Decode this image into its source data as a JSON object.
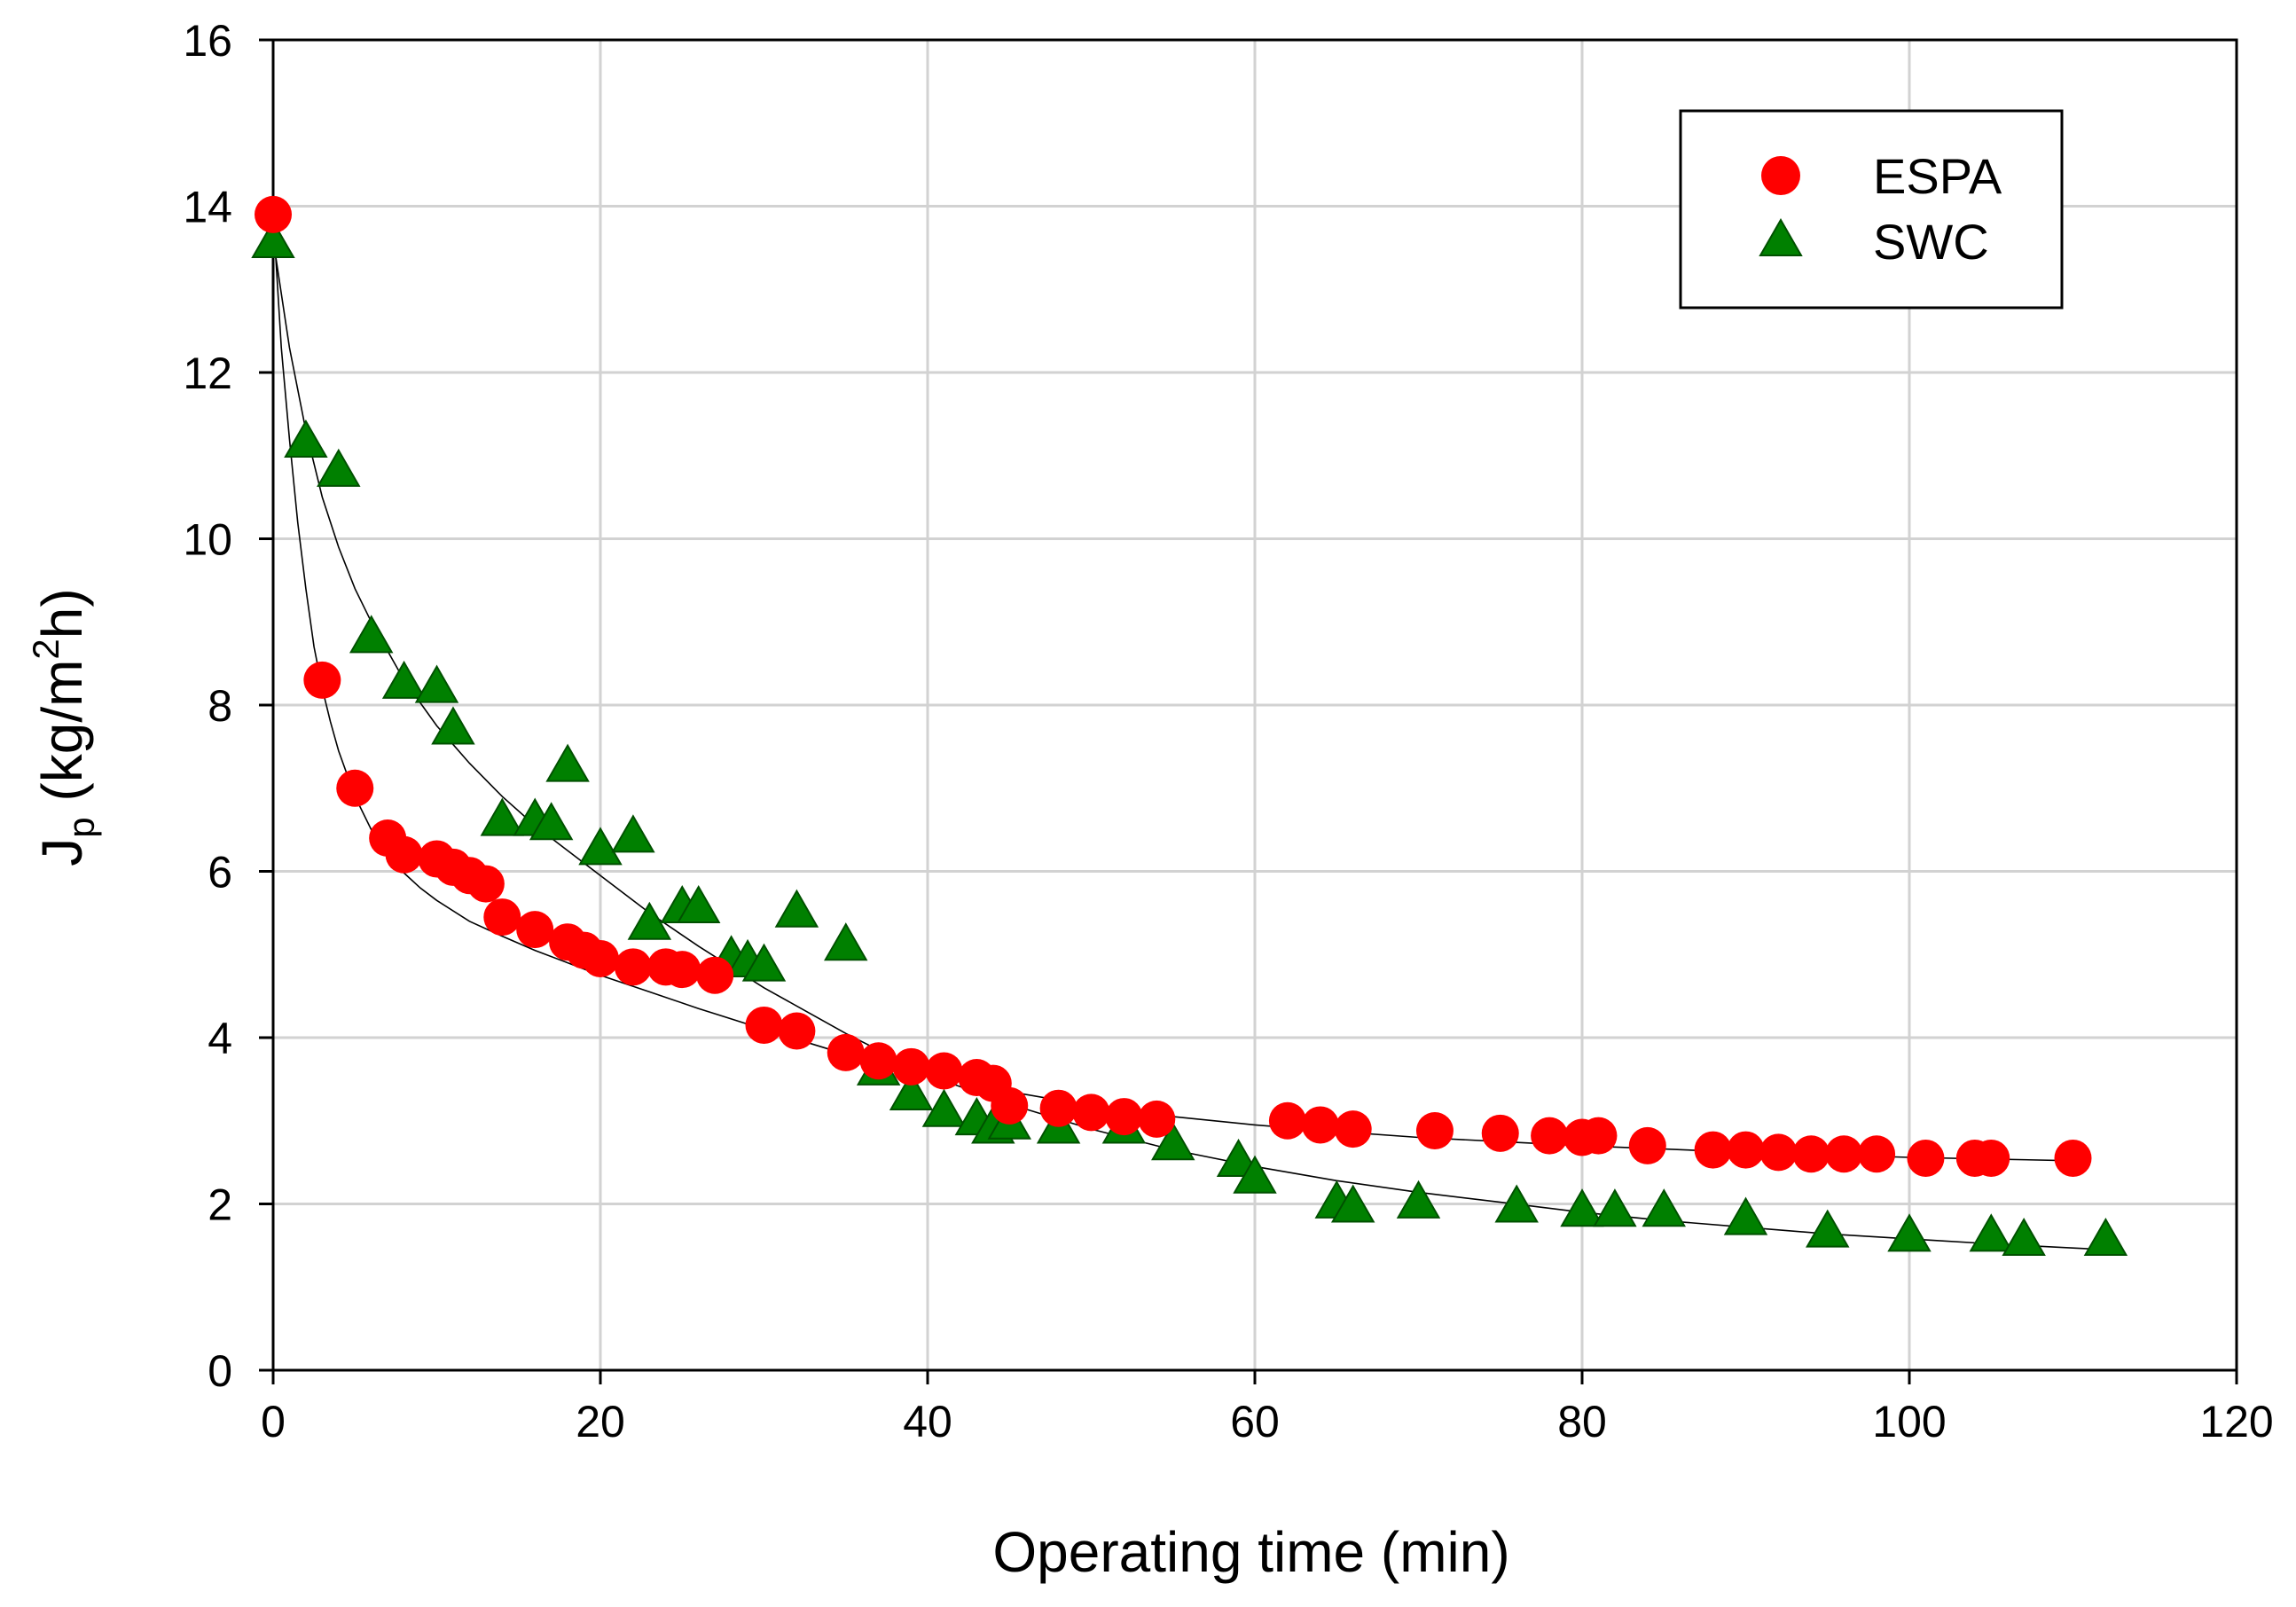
{
  "chart_data": {
    "type": "scatter",
    "title": "",
    "xlabel": "Operating time (min)",
    "ylabel": {
      "main": "J",
      "subscript": "p",
      "unit_open": " (kg/m",
      "superscript": "2",
      "unit_close": "h)"
    },
    "xlim": [
      0,
      120
    ],
    "ylim": [
      0,
      16
    ],
    "xticks": [
      0,
      20,
      40,
      60,
      80,
      100,
      120
    ],
    "yticks": [
      0,
      2,
      4,
      6,
      8,
      10,
      12,
      14,
      16
    ],
    "grid": true,
    "legend_position": "top-right",
    "series": [
      {
        "name": "ESPA",
        "marker": "circle",
        "color": "#ff0000",
        "x": [
          0,
          3,
          5,
          7,
          8,
          10,
          11,
          12,
          13,
          14,
          16,
          18,
          19,
          20,
          22,
          24,
          25,
          27,
          30,
          32,
          35,
          37,
          39,
          41,
          43,
          44,
          45,
          48,
          50,
          52,
          54,
          62,
          64,
          66,
          71,
          75,
          78,
          80,
          81,
          84,
          88,
          90,
          92,
          94,
          96,
          98,
          101,
          104,
          105,
          110
        ],
        "y": [
          13.9,
          8.3,
          7.0,
          6.4,
          6.2,
          6.15,
          6.05,
          5.95,
          5.85,
          5.45,
          5.3,
          5.15,
          5.05,
          4.95,
          4.85,
          4.85,
          4.82,
          4.75,
          4.15,
          4.08,
          3.82,
          3.72,
          3.65,
          3.6,
          3.52,
          3.45,
          3.18,
          3.15,
          3.1,
          3.05,
          3.02,
          3.0,
          2.95,
          2.9,
          2.88,
          2.85,
          2.82,
          2.8,
          2.82,
          2.7,
          2.65,
          2.65,
          2.62,
          2.6,
          2.6,
          2.6,
          2.55,
          2.55,
          2.55,
          2.55
        ]
      },
      {
        "name": "SWC",
        "marker": "triangle",
        "color": "#008000",
        "x": [
          0,
          2,
          4,
          6,
          8,
          10,
          11,
          14,
          16,
          17,
          18,
          20,
          22,
          23,
          25,
          26,
          28,
          29,
          30,
          32,
          35,
          37,
          39,
          41,
          43,
          44,
          45,
          48,
          52,
          55,
          59,
          60,
          65,
          66,
          70,
          76,
          80,
          82,
          85,
          90,
          95,
          100,
          105,
          107,
          112
        ],
        "y": [
          13.6,
          11.2,
          10.85,
          8.85,
          8.3,
          8.25,
          7.75,
          6.65,
          6.65,
          6.6,
          7.3,
          6.3,
          6.45,
          5.4,
          5.6,
          5.6,
          5.0,
          4.95,
          4.9,
          5.55,
          5.15,
          3.65,
          3.35,
          3.15,
          3.05,
          2.95,
          3.0,
          2.95,
          2.95,
          2.75,
          2.55,
          2.35,
          2.05,
          2.0,
          2.05,
          2.0,
          1.95,
          1.95,
          1.95,
          1.85,
          1.7,
          1.65,
          1.65,
          1.6,
          1.6
        ]
      }
    ],
    "fits": [
      {
        "series": "ESPA",
        "x": [
          0,
          0.5,
          1,
          1.5,
          2,
          2.5,
          3,
          3.5,
          4,
          5,
          6,
          7,
          8,
          9,
          10,
          12,
          14,
          16,
          18,
          20,
          23,
          26,
          30,
          35,
          40,
          45,
          50,
          55,
          60,
          65,
          70,
          75,
          80,
          85,
          90,
          95,
          100,
          105,
          110
        ],
        "y": [
          13.9,
          12.3,
          11.2,
          10.2,
          9.4,
          8.7,
          8.2,
          7.8,
          7.45,
          6.9,
          6.5,
          6.2,
          5.98,
          5.8,
          5.65,
          5.4,
          5.22,
          5.05,
          4.9,
          4.75,
          4.55,
          4.35,
          4.1,
          3.8,
          3.55,
          3.35,
          3.18,
          3.05,
          2.95,
          2.87,
          2.8,
          2.75,
          2.7,
          2.66,
          2.62,
          2.59,
          2.56,
          2.54,
          2.52
        ]
      },
      {
        "series": "SWC",
        "x": [
          0,
          1,
          2,
          3,
          4,
          5,
          6,
          8,
          10,
          12,
          14,
          16,
          18,
          20,
          23,
          26,
          30,
          35,
          40,
          45,
          50,
          55,
          60,
          65,
          70,
          75,
          80,
          85,
          90,
          95,
          100,
          105,
          112
        ],
        "y": [
          13.6,
          12.3,
          11.3,
          10.5,
          9.9,
          9.4,
          9.0,
          8.3,
          7.75,
          7.3,
          6.9,
          6.55,
          6.25,
          5.95,
          5.5,
          5.1,
          4.6,
          4.05,
          3.55,
          3.2,
          2.9,
          2.65,
          2.45,
          2.28,
          2.14,
          2.02,
          1.9,
          1.8,
          1.72,
          1.64,
          1.58,
          1.52,
          1.45
        ]
      }
    ]
  }
}
